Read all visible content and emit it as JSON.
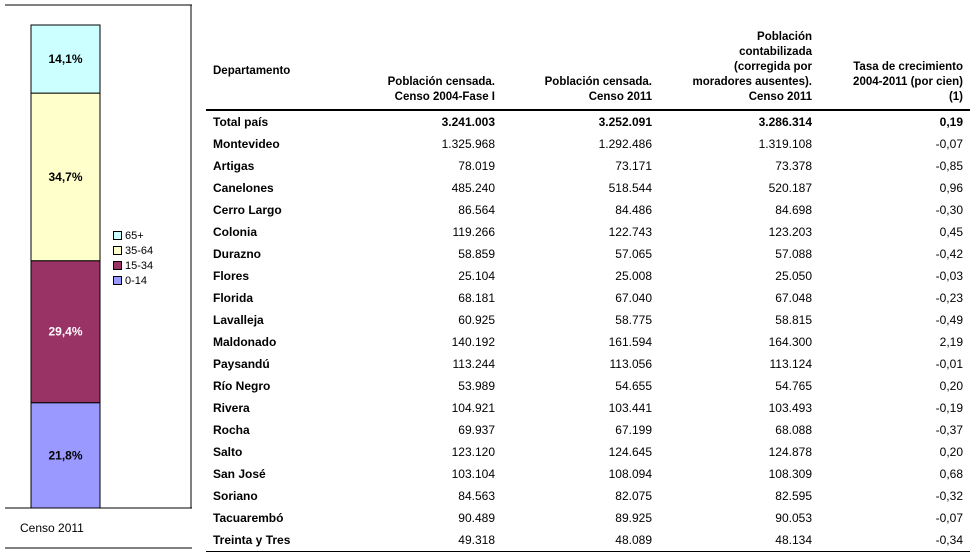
{
  "chart_data": {
    "type": "bar",
    "stacked": true,
    "percent_stacked": true,
    "categories": [
      "Censo 2011"
    ],
    "series": [
      {
        "name": "0-14",
        "values": [
          21.8
        ],
        "label": "21,8%",
        "color": "#9999ff"
      },
      {
        "name": "15-34",
        "values": [
          29.4
        ],
        "label": "29,4%",
        "color": "#993366"
      },
      {
        "name": "35-64",
        "values": [
          34.7
        ],
        "label": "34,7%",
        "color": "#ffffcc"
      },
      {
        "name": "65+",
        "values": [
          14.1
        ],
        "label": "14,1%",
        "color": "#ccffff"
      }
    ],
    "legend_order": [
      "65+",
      "35-64",
      "15-34",
      "0-14"
    ],
    "legend_position": "right",
    "ylim": [
      0,
      100
    ],
    "grid": false
  },
  "table": {
    "headers": {
      "departamento": "Departamento",
      "censo2004": [
        "Población censada.",
        "Censo 2004-Fase I"
      ],
      "censo2011": [
        "Población censada.",
        "Censo 2011"
      ],
      "contabilizada": [
        "Población",
        "contabilizada",
        "(corregida por",
        "moradores ausentes).",
        "Censo 2011"
      ],
      "tasa": [
        "Tasa de crecimiento",
        "2004-2011 (por cien)",
        "(1)"
      ]
    },
    "rows": [
      {
        "name": "Total país",
        "c2004": "3.241.003",
        "c2011": "3.252.091",
        "cont": "3.286.314",
        "tasa": "0,19",
        "total": true
      },
      {
        "name": "Montevideo",
        "c2004": "1.325.968",
        "c2011": "1.292.486",
        "cont": "1.319.108",
        "tasa": "-0,07"
      },
      {
        "name": "Artigas",
        "c2004": "78.019",
        "c2011": "73.171",
        "cont": "73.378",
        "tasa": "-0,85"
      },
      {
        "name": "Canelones",
        "c2004": "485.240",
        "c2011": "518.544",
        "cont": "520.187",
        "tasa": "0,96"
      },
      {
        "name": "Cerro Largo",
        "c2004": "86.564",
        "c2011": "84.486",
        "cont": "84.698",
        "tasa": "-0,30"
      },
      {
        "name": "Colonia",
        "c2004": "119.266",
        "c2011": "122.743",
        "cont": "123.203",
        "tasa": "0,45"
      },
      {
        "name": "Durazno",
        "c2004": "58.859",
        "c2011": "57.065",
        "cont": "57.088",
        "tasa": "-0,42"
      },
      {
        "name": "Flores",
        "c2004": "25.104",
        "c2011": "25.008",
        "cont": "25.050",
        "tasa": "-0,03"
      },
      {
        "name": "Florida",
        "c2004": "68.181",
        "c2011": "67.040",
        "cont": "67.048",
        "tasa": "-0,23"
      },
      {
        "name": "Lavalleja",
        "c2004": "60.925",
        "c2011": "58.775",
        "cont": "58.815",
        "tasa": "-0,49"
      },
      {
        "name": "Maldonado",
        "c2004": "140.192",
        "c2011": "161.594",
        "cont": "164.300",
        "tasa": "2,19"
      },
      {
        "name": "Paysandú",
        "c2004": "113.244",
        "c2011": "113.056",
        "cont": "113.124",
        "tasa": "-0,01"
      },
      {
        "name": "Río Negro",
        "c2004": "53.989",
        "c2011": "54.655",
        "cont": "54.765",
        "tasa": "0,20"
      },
      {
        "name": "Rivera",
        "c2004": "104.921",
        "c2011": "103.441",
        "cont": "103.493",
        "tasa": "-0,19"
      },
      {
        "name": "Rocha",
        "c2004": "69.937",
        "c2011": "67.199",
        "cont": "68.088",
        "tasa": "-0,37"
      },
      {
        "name": "Salto",
        "c2004": "123.120",
        "c2011": "124.645",
        "cont": "124.878",
        "tasa": "0,20"
      },
      {
        "name": "San José",
        "c2004": "103.104",
        "c2011": "108.094",
        "cont": "108.309",
        "tasa": "0,68"
      },
      {
        "name": "Soriano",
        "c2004": "84.563",
        "c2011": "82.075",
        "cont": "82.595",
        "tasa": "-0,32"
      },
      {
        "name": "Tacuarembó",
        "c2004": "90.489",
        "c2011": "89.925",
        "cont": "90.053",
        "tasa": "-0,07"
      },
      {
        "name": "Treinta y Tres",
        "c2004": "49.318",
        "c2011": "48.089",
        "cont": "48.134",
        "tasa": "-0,34"
      }
    ]
  }
}
